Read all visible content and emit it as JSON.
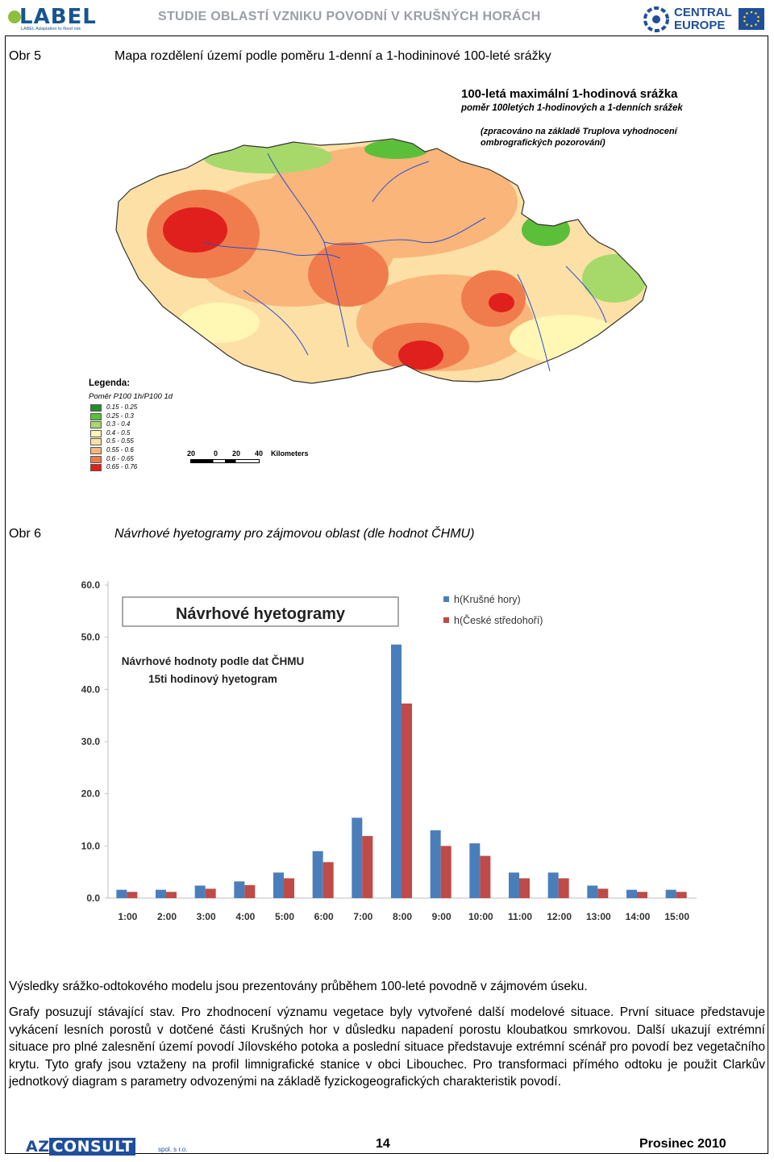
{
  "header": {
    "logo_left": "LABEL",
    "logo_left_sub": "LABEL Adaptation to flood risk",
    "doc_title": "STUDIE OBLASTÍ VZNIKU POVODNÍ V KRUŠNÝCH HORÁCH",
    "logo_right_line1": "CENTRAL",
    "logo_right_line2": "EUROPE"
  },
  "fig5": {
    "number": "Obr 5",
    "caption": "Mapa rozdělení území podle poměru 1-denní a 1-hodininové 100-leté srážky",
    "map_title": "100-letá maximální 1-hodinová srážka",
    "map_subtitle": "poměr 100letých 1-hodinových a 1-denních srážek",
    "map_note": "(zpracováno na základě Truplova vyhodnocení ombrografických pozorování)",
    "legend_title": "Legenda:",
    "legend_subtitle": "Poměr P100 1h/P100 1d",
    "legend": [
      {
        "label": "0.15 - 0.25",
        "color": "#1f8f2b"
      },
      {
        "label": "0.25 - 0.3",
        "color": "#5cbf3a"
      },
      {
        "label": "0.3 - 0.4",
        "color": "#a6d96a"
      },
      {
        "label": "0.4 - 0.5",
        "color": "#fff7b3"
      },
      {
        "label": "0.5 - 0.55",
        "color": "#fde0a6"
      },
      {
        "label": "0.55 - 0.6",
        "color": "#f9b57a"
      },
      {
        "label": "0.6 - 0.65",
        "color": "#f07c4e"
      },
      {
        "label": "0.65 - 0.76",
        "color": "#e0201c"
      }
    ],
    "scale_labels": [
      "20",
      "0",
      "20",
      "40"
    ],
    "scale_unit": "Kilometers"
  },
  "fig6": {
    "number": "Obr 6",
    "caption": "Návrhové hyetogramy pro zájmovou oblast (dle hodnot ČHMU)"
  },
  "chart_data": {
    "type": "bar",
    "title": "Návrhové hyetogramy",
    "subtitle_line1": "Návrhové hodnoty podle dat ČHMU",
    "subtitle_line2": "15ti hodinový hyetogram",
    "categories": [
      "1:00",
      "2:00",
      "3:00",
      "4:00",
      "5:00",
      "6:00",
      "7:00",
      "8:00",
      "9:00",
      "10:00",
      "11:00",
      "12:00",
      "13:00",
      "14:00",
      "15:00"
    ],
    "series": [
      {
        "name": "h(Krušné hory)",
        "color": "#4a7ebb",
        "values": [
          1.6,
          1.6,
          2.4,
          3.2,
          4.9,
          9.0,
          15.4,
          48.6,
          13.0,
          10.5,
          4.9,
          4.9,
          2.4,
          1.6,
          1.6
        ]
      },
      {
        "name": "h(České středohoří)",
        "color": "#be4b48",
        "values": [
          1.2,
          1.2,
          1.8,
          2.5,
          3.8,
          6.9,
          11.9,
          37.3,
          10.0,
          8.1,
          3.8,
          3.8,
          1.8,
          1.2,
          1.2
        ]
      }
    ],
    "y_ticks": [
      "0.0",
      "10.0",
      "20.0",
      "30.0",
      "40.0",
      "50.0",
      "60.0"
    ],
    "ylim": [
      0,
      60
    ],
    "legend_position": "top-right",
    "grid": false
  },
  "body": {
    "p1": "Výsledky srážko-odtokového modelu jsou prezentovány průběhem 100-leté povodně v zájmovém úseku.",
    "p2": "Grafy posuzují stávající stav. Pro zhodnocení významu vegetace byly vytvořené další modelové situace. První situace představuje vykácení lesních porostů v dotčené části Krušných hor v důsledku napadení porostu kloubatkou smrkovou. Další ukazují extrémní situace pro plné zalesnění území povodí Jílovského potoka a poslední situace představuje extrémní scénář pro povodí bez vegetačního krytu. Tyto grafy jsou vztaženy na profil limnigrafické stanice v obci Libouchec. Pro transformaci přímého odtoku je použit Clarkův jednotkový diagram s parametry odvozenými na základě fyzickogeografických charakteristik povodí."
  },
  "footer": {
    "logo_a": "AZ",
    "logo_b": "CONSULT",
    "logo_sub": "spol. s r.o.",
    "page": "14",
    "date": "Prosinec 2010"
  }
}
